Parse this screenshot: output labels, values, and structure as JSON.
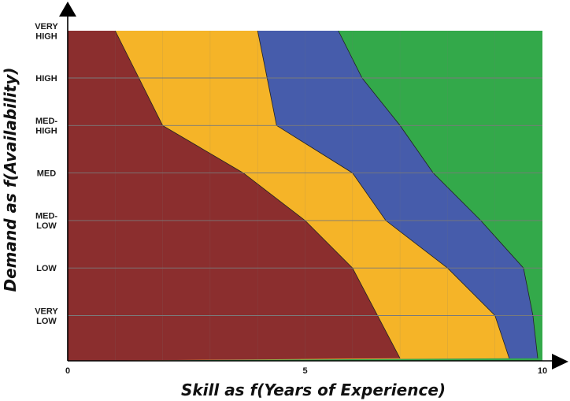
{
  "chart_data": {
    "type": "area",
    "xlabel": "Skill as f(Years of Experience)",
    "ylabel": "Demand as f(Availability)",
    "xlim": [
      0,
      10
    ],
    "ylim": [
      0,
      7
    ],
    "x_ticks": [
      {
        "value": 0,
        "label": "0"
      },
      {
        "value": 5,
        "label": "5"
      },
      {
        "value": 10,
        "label": "10"
      }
    ],
    "y_categories": [
      {
        "value": 6,
        "label": [
          "VERY",
          "HIGH"
        ]
      },
      {
        "value": 5,
        "label": [
          "HIGH"
        ]
      },
      {
        "value": 4,
        "label": [
          "MED-",
          "HIGH"
        ]
      },
      {
        "value": 3,
        "label": [
          "MED"
        ]
      },
      {
        "value": 2,
        "label": [
          "MED-",
          "LOW"
        ]
      },
      {
        "value": 1,
        "label": [
          "LOW"
        ]
      },
      {
        "value": 0,
        "label": [
          "VERY",
          "LOW"
        ]
      }
    ],
    "grid": true,
    "colors": {
      "band_1": "#8b2e2e",
      "band_2": "#f5b428",
      "band_3": "#465cab",
      "band_4": "#33a94a",
      "grid": "#7a7a7a",
      "axis": "#000000"
    },
    "boundaries": [
      {
        "fill": "band_1",
        "points": [
          [
            1.0,
            6.0
          ],
          [
            1.5,
            5.0
          ],
          [
            2.0,
            4.0
          ],
          [
            3.7,
            3.0
          ],
          [
            5.0,
            2.0
          ],
          [
            6.0,
            1.0
          ],
          [
            7.0,
            -0.9
          ]
        ]
      },
      {
        "fill": "band_2",
        "points": [
          [
            4.0,
            6.0
          ],
          [
            4.2,
            5.0
          ],
          [
            4.4,
            4.0
          ],
          [
            6.0,
            3.0
          ],
          [
            6.7,
            2.0
          ],
          [
            8.0,
            1.0
          ],
          [
            9.0,
            0.0
          ],
          [
            9.3,
            -0.9
          ]
        ]
      },
      {
        "fill": "band_3",
        "points": [
          [
            5.7,
            6.0
          ],
          [
            6.2,
            5.0
          ],
          [
            7.0,
            4.0
          ],
          [
            7.7,
            3.0
          ],
          [
            8.7,
            2.0
          ],
          [
            9.6,
            1.0
          ],
          [
            9.8,
            0.0
          ],
          [
            9.9,
            -0.9
          ]
        ]
      }
    ],
    "fill_last": "band_4"
  }
}
